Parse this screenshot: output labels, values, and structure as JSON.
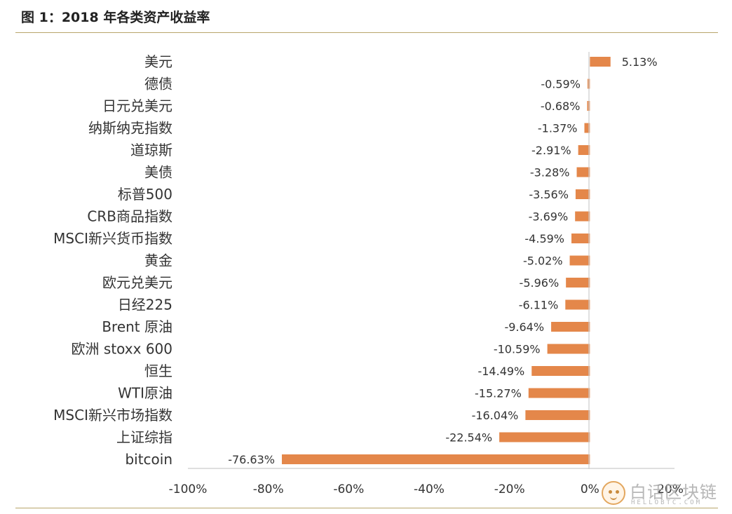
{
  "figure_title": "图 1：2018 年各类资产收益率",
  "watermark": {
    "icon": "bear-face-icon",
    "text": "白话区块链",
    "subtext": "HELLOBTC.COM"
  },
  "chart_data": {
    "type": "bar",
    "orientation": "horizontal",
    "title": "图 1：2018 年各类资产收益率",
    "xlabel": "",
    "ylabel": "",
    "bar_color": "#e4874a",
    "axis_color": "#cccccc",
    "xlim": [
      -100,
      20
    ],
    "x_ticks": [
      {
        "value": -100,
        "label": "-100%"
      },
      {
        "value": -80,
        "label": "-80%"
      },
      {
        "value": -60,
        "label": "-60%"
      },
      {
        "value": -40,
        "label": "-40%"
      },
      {
        "value": -20,
        "label": "-20%"
      },
      {
        "value": 0,
        "label": "0%"
      },
      {
        "value": 20,
        "label": "20%"
      }
    ],
    "grid": false,
    "legend": "none",
    "categories": [
      "美元",
      "德债",
      "日元兑美元",
      "纳斯纳克指数",
      "道琼斯",
      "美债",
      "标普500",
      "CRB商品指数",
      "MSCI新兴货币指数",
      "黄金",
      "欧元兑美元",
      "日经225",
      "Brent 原油",
      "欧洲 stoxx 600",
      "恒生",
      "WTI原油",
      "MSCI新兴市场指数",
      "上证综指",
      "bitcoin"
    ],
    "values": [
      5.13,
      -0.59,
      -0.68,
      -1.37,
      -2.91,
      -3.28,
      -3.56,
      -3.69,
      -4.59,
      -5.02,
      -5.96,
      -6.11,
      -9.64,
      -10.59,
      -14.49,
      -15.27,
      -16.04,
      -22.54,
      -76.63
    ],
    "data_labels": [
      "5.13%",
      "-0.59%",
      "-0.68%",
      "-1.37%",
      "-2.91%",
      "-3.28%",
      "-3.56%",
      "-3.69%",
      "-4.59%",
      "-5.02%",
      "-5.96%",
      "-6.11%",
      "-9.64%",
      "-10.59%",
      "-14.49%",
      "-15.27%",
      "-16.04%",
      "-22.54%",
      "-76.63%"
    ]
  }
}
